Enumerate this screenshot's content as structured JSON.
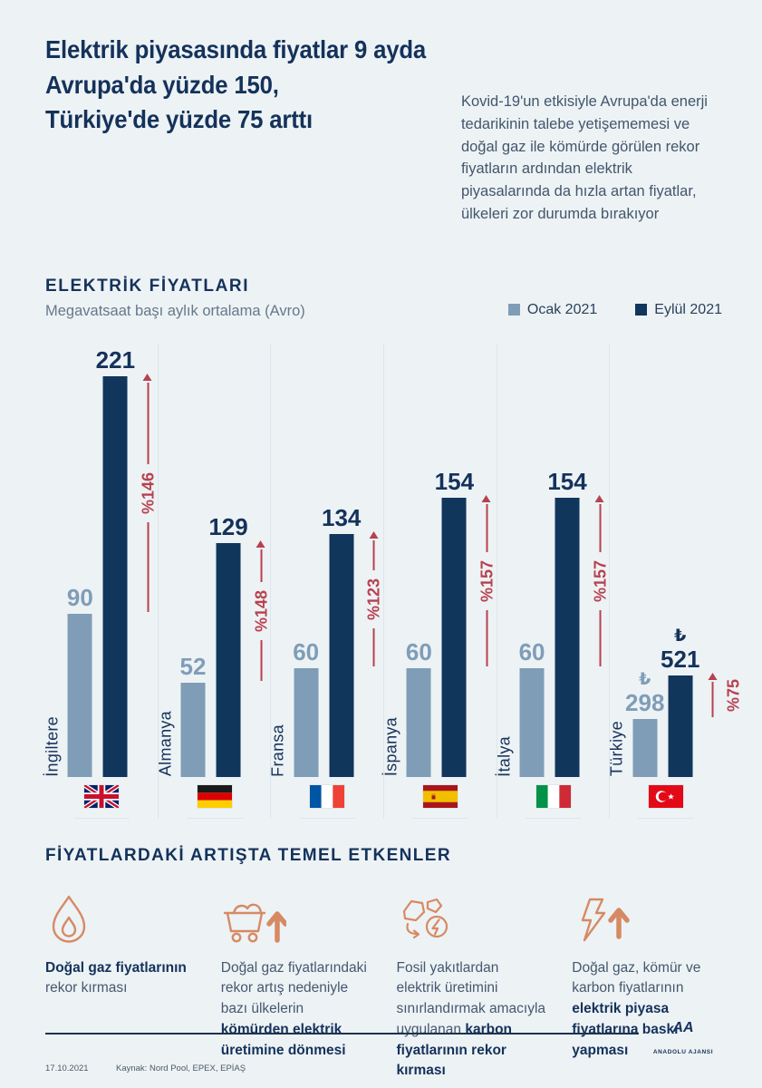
{
  "title_lines": [
    "Elektrik piyasasında fiyatlar 9 ayda",
    "Avrupa'da yüzde 150,",
    "Türkiye'de yüzde 75 arttı"
  ],
  "intro": "Kovid-19'un etkisiyle Avrupa'da enerji tedarikinin talebe yetişememesi ve doğal gaz ile kömürde görülen rekor fiyatların ardından elektrik piyasalarında da hızla artan fiyatlar, ülkeleri zor durumda bırakıyor",
  "chart": {
    "heading": "ELEKTRİK FİYATLARI",
    "subheading": "Megavatsaat başı aylık ortalama (Avro)",
    "legend": [
      {
        "label": "Ocak 2021",
        "color": "#7f9db7"
      },
      {
        "label": "Eylül 2021",
        "color": "#11365c"
      }
    ]
  },
  "chart_data": {
    "type": "bar",
    "title": "ELEKTRİK FİYATLARI",
    "subtitle": "Megavatsaat başı aylık ortalama (Avro)",
    "legend_position": "top-right",
    "categories": [
      "İngiltere",
      "Almanya",
      "Fransa",
      "İspanya",
      "İtalya",
      "Türkiye"
    ],
    "series": [
      {
        "name": "Ocak 2021",
        "values": [
          90,
          52,
          60,
          60,
          60,
          298
        ]
      },
      {
        "name": "Eylül 2021",
        "values": [
          221,
          129,
          134,
          154,
          154,
          521
        ]
      }
    ],
    "pct_change": [
      "%146",
      "%148",
      "%123",
      "%157",
      "%157",
      "%75"
    ],
    "units": [
      "",
      "",
      "",
      "",
      "",
      "₺"
    ],
    "countries": [
      {
        "name": "İngiltere",
        "flag": "uk",
        "jan": 90,
        "sep": 221,
        "pct": "%146",
        "unit": ""
      },
      {
        "name": "Almanya",
        "flag": "germany",
        "jan": 52,
        "sep": 129,
        "pct": "%148",
        "unit": ""
      },
      {
        "name": "Fransa",
        "flag": "france",
        "jan": 60,
        "sep": 134,
        "pct": "%123",
        "unit": ""
      },
      {
        "name": "İspanya",
        "flag": "spain",
        "jan": 60,
        "sep": 154,
        "pct": "%157",
        "unit": ""
      },
      {
        "name": "İtalya",
        "flag": "italy",
        "jan": 60,
        "sep": 154,
        "pct": "%157",
        "unit": ""
      },
      {
        "name": "Türkiye",
        "flag": "turkey",
        "jan": 298,
        "sep": 521,
        "pct": "%75",
        "unit": "₺"
      }
    ]
  },
  "factors": {
    "heading": "FİYATLARDAKİ ARTIŞTA TEMEL ETKENLER",
    "items": [
      {
        "icon": "flame-icon",
        "segments": [
          {
            "t": "Doğal gaz fiyatlarının",
            "b": true
          },
          {
            "t": " rekor kırması",
            "b": false
          }
        ]
      },
      {
        "icon": "mine-cart-up-icon",
        "segments": [
          {
            "t": "Doğal gaz fiyatlarındaki rekor artış nedeniyle bazı ülkelerin ",
            "b": false
          },
          {
            "t": "kömürden elektrik üretimine dönmesi",
            "b": true
          }
        ]
      },
      {
        "icon": "coal-energy-icon",
        "segments": [
          {
            "t": "Fosil yakıtlardan elektrik üretimini sınırlandırmak amacıyla uygulanan ",
            "b": false
          },
          {
            "t": "karbon fiyatlarının rekor kırması",
            "b": true
          }
        ]
      },
      {
        "icon": "lightning-up-icon",
        "segments": [
          {
            "t": "Doğal gaz, kömür ve karbon fiyatlarının ",
            "b": false
          },
          {
            "t": "elektrik piyasa fiyatlarına baskı yapması",
            "b": true
          }
        ]
      }
    ]
  },
  "footer": {
    "date": "17.10.2021",
    "source": "Kaynak: Nord Pool, EPEX, EPİAŞ",
    "agency": "ANADOLU AJANSI"
  },
  "colors": {
    "background": "#edf2f5",
    "navy": "#14325a",
    "bar_jan": "#7f9db7",
    "bar_sep": "#11365c",
    "arrow_red": "#b8414e",
    "icon_orange": "#d68a63"
  }
}
